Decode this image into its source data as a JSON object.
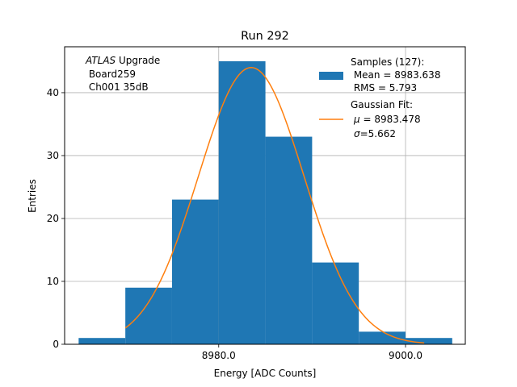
{
  "chart_data": {
    "type": "bar",
    "title": "Run 292",
    "xlabel": "Energy [ADC Counts]",
    "ylabel": "Entries",
    "xlim": [
      8963.5,
      9006.4
    ],
    "ylim": [
      0,
      47.3
    ],
    "xticks": [
      8980.0,
      9000.0
    ],
    "xtick_labels": [
      "8980.0",
      "9000.0"
    ],
    "yticks": [
      0,
      10,
      20,
      30,
      40
    ],
    "ytick_labels": [
      "0",
      "10",
      "20",
      "30",
      "40"
    ],
    "grid": true,
    "histogram": {
      "name": "Samples (127):",
      "color": "#1f77b4",
      "bin_edges": [
        8965.0,
        8970.0,
        8975.0,
        8980.0,
        8985.0,
        8990.0,
        8995.0,
        9000.0,
        9005.0
      ],
      "counts": [
        1,
        9,
        23,
        45,
        33,
        13,
        2,
        1
      ]
    },
    "fit": {
      "name": "Gaussian Fit:",
      "color": "#ff7f0e",
      "mu": 8983.478,
      "sigma": 5.662,
      "amplitude": 44.0,
      "x_range": [
        8970.0,
        9002.0
      ]
    },
    "annotation": {
      "experiment": "ATLAS",
      "line1_rest": " Upgrade",
      "line2": " Board259",
      "line3": " Ch001 35dB"
    },
    "legend": {
      "placement": "top-right",
      "samples_title": "Samples (127):",
      "samples_mean": " Mean = 8983.638",
      "samples_rms": " RMS = 5.793",
      "fit_title": "Gaussian Fit:",
      "fit_mu_symbol": "μ",
      "fit_mu_rest": " = 8983.478",
      "fit_sigma_symbol": "σ",
      "fit_sigma_rest": "=5.662"
    }
  }
}
